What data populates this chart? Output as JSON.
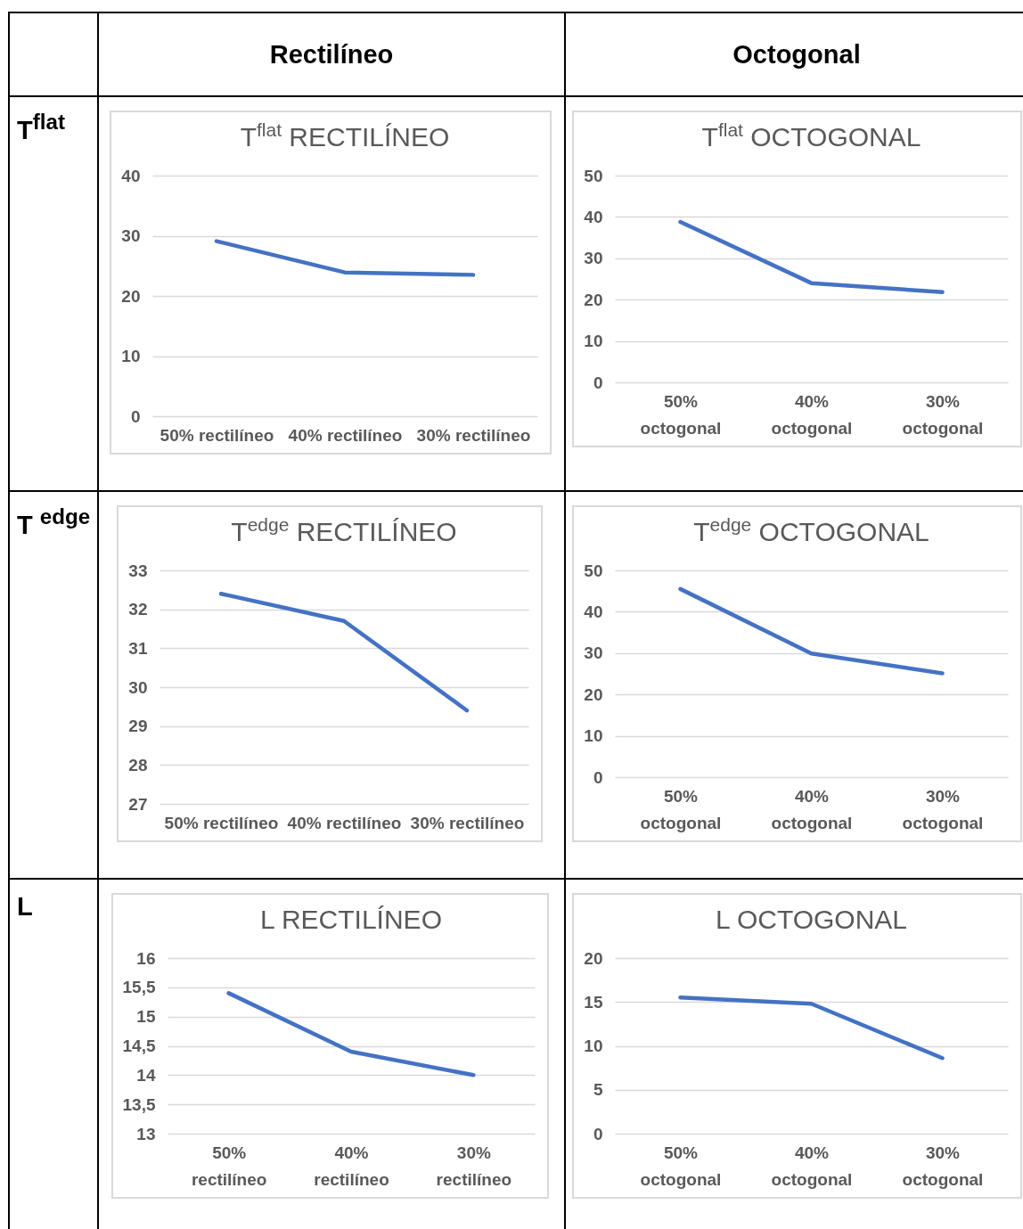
{
  "chart_data": [
    {
      "type": "other",
      "annotations": [
        "Rectilíneo",
        "Octogonal",
        "T$^{flat}$",
        "T $^{edge}$",
        "L"
      ]
    },
    {
      "type": "line",
      "title": "T$^{flat}$ RECTILÍNEO",
      "categories": [
        "50% rectilíneo",
        "40% rectilíneo",
        "30% rectilíneo"
      ],
      "series": [
        {
          "color": "#4472c4",
          "values": [
            29.1,
            23.9,
            23.5
          ]
        }
      ],
      "ylim": [
        0,
        40
      ],
      "yticks": [
        0,
        10,
        20,
        30,
        40
      ],
      "grid": "y"
    },
    {
      "type": "line",
      "title": "T$^{flat}$ OCTOGONAL",
      "categories": [
        "50% octogonal",
        "40% octogonal",
        "30% octogonal"
      ],
      "series": [
        {
          "color": "#4472c4",
          "values": [
            38.8,
            24,
            21.8
          ]
        }
      ],
      "ylim": [
        0,
        50
      ],
      "yticks": [
        0,
        10,
        20,
        30,
        40,
        50
      ],
      "grid": "y"
    },
    {
      "type": "line",
      "title": "T$^{edge}$ RECTILÍNEO",
      "categories": [
        "50% rectilíneo",
        "40% rectilíneo",
        "30% rectilíneo"
      ],
      "series": [
        {
          "color": "#4472c4",
          "values": [
            32.4,
            31.7,
            29.4
          ]
        }
      ],
      "ylim": [
        27,
        33
      ],
      "yticks": [
        27,
        28,
        29,
        30,
        31,
        32,
        33
      ],
      "grid": "y"
    },
    {
      "type": "line",
      "title": "T$^{edge}$ OCTOGONAL",
      "categories": [
        "50% octogonal",
        "40% octogonal",
        "30% octogonal"
      ],
      "series": [
        {
          "color": "#4472c4",
          "values": [
            45.5,
            29.9,
            25.1
          ]
        }
      ],
      "ylim": [
        0,
        50
      ],
      "yticks": [
        0,
        10,
        20,
        30,
        40,
        50
      ],
      "grid": "y"
    },
    {
      "type": "line",
      "title": "L RECTILÍNEO",
      "categories": [
        "50% rectilíneo",
        "40% rectilíneo",
        "30% rectilíneo"
      ],
      "series": [
        {
          "color": "#4472c4",
          "values": [
            15.4,
            14.4,
            14.0
          ]
        }
      ],
      "ylim": [
        13,
        16
      ],
      "yticks": [
        13,
        {
          "value": 13.5,
          "label": "13,5"
        },
        14,
        {
          "value": 14.5,
          "label": "14,5"
        },
        15,
        {
          "value": 15.5,
          "label": "15,5"
        },
        16
      ],
      "grid": "y"
    },
    {
      "type": "line",
      "title": "L OCTOGONAL",
      "categories": [
        "50% octogonal",
        "40% octogonal",
        "30% octogonal"
      ],
      "series": [
        {
          "color": "#4472c4",
          "values": [
            15.5,
            14.8,
            8.6
          ]
        }
      ],
      "ylim": [
        0,
        20
      ],
      "yticks": [
        0,
        5,
        10,
        15,
        20
      ],
      "grid": "y"
    }
  ]
}
